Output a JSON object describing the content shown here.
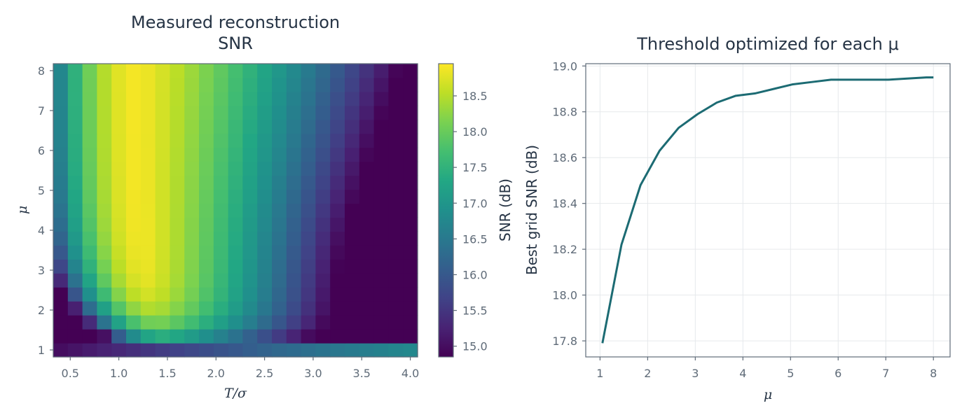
{
  "chart_data": [
    {
      "type": "heatmap",
      "title_lines": [
        "Measured reconstruction",
        "SNR"
      ],
      "xlabel": "T/σ",
      "ylabel": "μ",
      "x_ticks": [
        "0.5",
        "1.0",
        "1.5",
        "2.0",
        "2.5",
        "3.0",
        "3.5",
        "4.0"
      ],
      "x_tick_values": [
        0.5,
        1.0,
        1.5,
        2.0,
        2.5,
        3.0,
        3.5,
        4.0
      ],
      "y_ticks": [
        "1",
        "2",
        "3",
        "4",
        "5",
        "6",
        "7",
        "8"
      ],
      "y_tick_values": [
        1,
        2,
        3,
        4,
        5,
        6,
        7,
        8
      ],
      "x_centers": [
        0.4,
        0.55,
        0.7,
        0.85,
        1.0,
        1.15,
        1.3,
        1.45,
        1.6,
        1.75,
        1.9,
        2.05,
        2.2,
        2.35,
        2.5,
        2.65,
        2.8,
        2.95,
        3.1,
        3.25,
        3.4,
        3.55,
        3.7,
        3.85,
        4.0
      ],
      "y_centers": [
        1.0,
        1.35,
        1.7,
        2.05,
        2.4,
        2.75,
        3.1,
        3.45,
        3.8,
        4.15,
        4.5,
        4.85,
        5.2,
        5.55,
        5.9,
        6.25,
        6.6,
        6.95,
        7.3,
        7.65,
        8.0
      ],
      "colorbar": {
        "label": "SNR (dB)",
        "ticks": [
          "15.0",
          "15.5",
          "16.0",
          "16.5",
          "17.0",
          "17.5",
          "18.0",
          "18.5"
        ],
        "tick_values": [
          15.0,
          15.5,
          16.0,
          16.5,
          17.0,
          17.5,
          18.0,
          18.5
        ],
        "vmin": 14.85,
        "vmax": 18.95,
        "colormap": "viridis"
      }
    },
    {
      "type": "line",
      "title": "Threshold optimized for each μ",
      "xlabel": "μ",
      "ylabel": "Best grid SNR (dB)",
      "x_ticks": [
        "1",
        "2",
        "3",
        "4",
        "5",
        "6",
        "7",
        "8"
      ],
      "x_tick_values": [
        1,
        2,
        3,
        4,
        5,
        6,
        7,
        8
      ],
      "y_ticks": [
        "17.8",
        "18.0",
        "18.2",
        "18.4",
        "18.6",
        "18.8",
        "19.0"
      ],
      "y_tick_values": [
        17.8,
        18.0,
        18.2,
        18.4,
        18.6,
        18.8,
        19.0
      ],
      "xlim": [
        0.7,
        8.35
      ],
      "ylim": [
        17.73,
        19.01
      ],
      "grid": true,
      "line_color": "#1c6b73",
      "x": [
        1.05,
        1.45,
        1.85,
        2.25,
        2.65,
        3.05,
        3.45,
        3.85,
        4.25,
        4.65,
        5.05,
        5.45,
        5.85,
        6.25,
        6.65,
        7.05,
        7.45,
        7.85,
        8.0
      ],
      "y": [
        17.79,
        18.22,
        18.48,
        18.63,
        18.73,
        18.79,
        18.84,
        18.87,
        18.88,
        18.9,
        18.92,
        18.93,
        18.94,
        18.94,
        18.94,
        18.94,
        18.945,
        18.95,
        18.95
      ]
    }
  ]
}
